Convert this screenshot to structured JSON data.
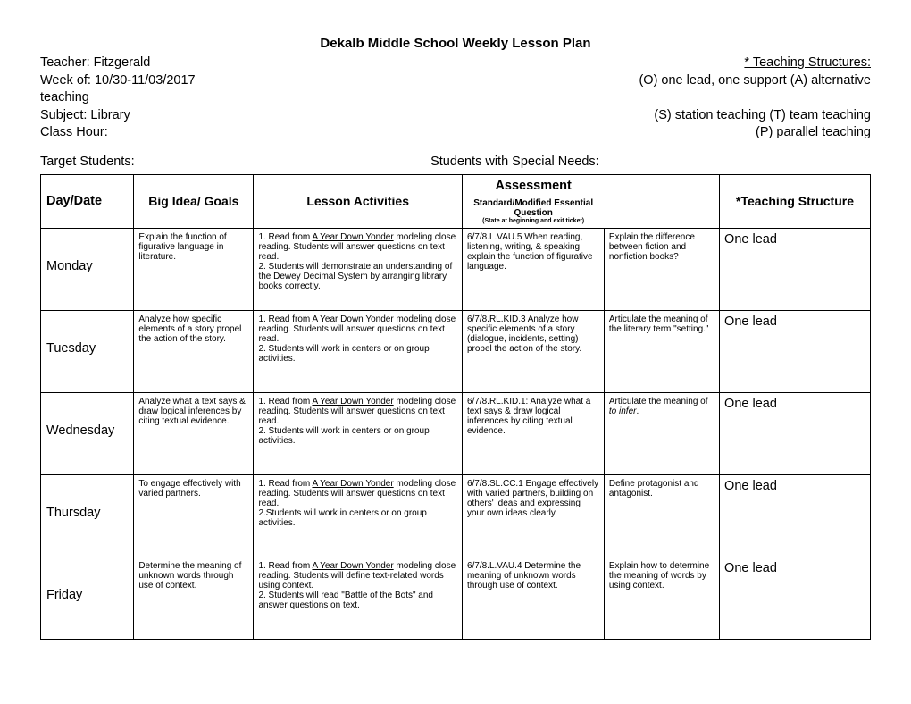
{
  "title": "Dekalb Middle School Weekly Lesson Plan",
  "header": {
    "teacher_label": "Teacher: Fitzgerald",
    "structures_label": "* Teaching Structures:",
    "week_label": "Week of:  10/30-11/03/2017",
    "structures_line1": "(O) one lead, one support  (A) alternative",
    "teaching_word": "teaching",
    "subject_label": "Subject:  Library",
    "structures_line2": "(S) station teaching            (T) team teaching",
    "classhour_label": "Class Hour:",
    "structures_line3": "(P) parallel teaching"
  },
  "targets": {
    "left": "Target Students:",
    "right": "Students with Special Needs:"
  },
  "columns": {
    "day": "Day/Date",
    "big_idea": "Big Idea/ Goals",
    "activities": "Lesson Activities",
    "assessment_main": "Assessment",
    "assessment_sub": "Standard/Modified Essential Question",
    "assessment_tiny": "(State at beginning and exit ticket)",
    "structure": "*Teaching Structure"
  },
  "rows": [
    {
      "day": "Monday",
      "big_idea": "Explain the function of figurative language in literature.",
      "activities_1": "1. Read from ",
      "activities_book": "A Year Down Yonder",
      "activities_2": " modeling close reading. Students will answer questions on text read.",
      "activities_3": "2. Students will demonstrate an understanding of the Dewey Decimal System by arranging library books correctly.",
      "assessment": "6/7/8.L.VAU.5 When reading, listening, writing, & speaking explain the function of figurative language.",
      "question": "Explain the difference between fiction and nonfiction books?",
      "structure": "One lead"
    },
    {
      "day": "Tuesday",
      "big_idea": "Analyze how specific elements of a story propel the action of the story.",
      "activities_1": "1. Read from ",
      "activities_book": "A Year Down Yonder",
      "activities_2": " modeling close reading. Students will answer questions on text read.",
      "activities_3": "2. Students will work in centers or on group activities.",
      "assessment": "6/7/8.RL.KID.3 Analyze how specific elements of a story (dialogue, incidents, setting) propel the action of the story.",
      "question_1": "Articulate the meaning of the literary term \"setting.\"",
      "structure": "One lead"
    },
    {
      "day": "Wednesday",
      "big_idea": "Analyze what a text says & draw logical inferences by citing textual evidence.",
      "activities_1": "1. Read from ",
      "activities_book": "A Year Down Yonder",
      "activities_2": " modeling close reading. Students will answer questions on text read.",
      "activities_3": "2. Students will work in centers or on group activities.",
      "assessment": "6/7/8.RL.KID.1: Analyze what a text says & draw logical inferences by citing textual evidence.",
      "question_pre": "Articulate the meaning of ",
      "question_italic": "to infer",
      "question_post": ".",
      "structure": "One lead"
    },
    {
      "day": "Thursday",
      "big_idea": "To engage effectively with varied partners.",
      "activities_1": "1. Read from ",
      "activities_book": "A Year Down Yonder",
      "activities_2": " modeling close reading. Students will answer questions on text read.",
      "activities_3": "2.Students will work in centers or on group activities.",
      "assessment": "6/7/8.SL.CC.1 Engage effectively with varied partners, building on others' ideas and expressing your own ideas clearly.",
      "question": "Define protagonist and antagonist.",
      "structure": "One lead"
    },
    {
      "day": "Friday",
      "big_idea": "Determine the meaning of unknown words through use of context.",
      "activities_1": "1. Read from ",
      "activities_book": "A Year Down Yonder",
      "activities_2": " modeling close reading. Students will define text-related words using context.",
      "activities_3": "2. Students will read \"Battle of the Bots\" and answer questions on text.",
      "assessment": "6/7/8.L.VAU.4 Determine the meaning of unknown words through use of context.",
      "question": "Explain how to determine the meaning of words by using context.",
      "structure": "One lead"
    }
  ]
}
